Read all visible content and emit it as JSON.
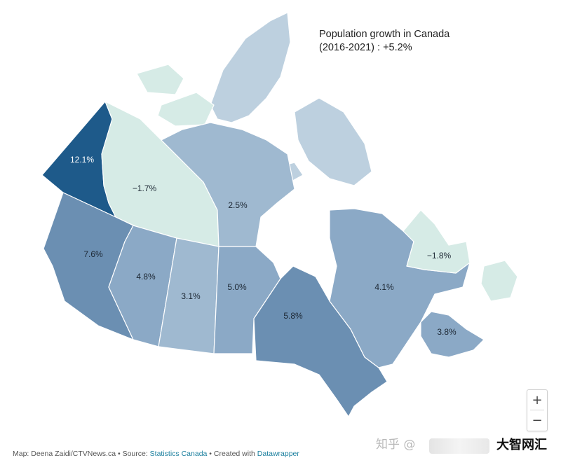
{
  "map": {
    "title": "Population growth in Canada (2016-2021) : +5.2%",
    "colors": {
      "very_dark": "#1e5a8a",
      "medium_dark": "#6b8fb2",
      "medium": "#8ba9c6",
      "light_blue": "#9fb9d0",
      "pale": "#d6ebe6",
      "island": "#bdd0df"
    },
    "provinces": [
      {
        "name": "Yukon",
        "value": "12.1%"
      },
      {
        "name": "Northwest Territories",
        "value": "−1.7%"
      },
      {
        "name": "Nunavut",
        "value": "2.5%"
      },
      {
        "name": "British Columbia",
        "value": "7.6%"
      },
      {
        "name": "Alberta",
        "value": "4.8%"
      },
      {
        "name": "Saskatchewan",
        "value": "3.1%"
      },
      {
        "name": "Manitoba",
        "value": "5.0%"
      },
      {
        "name": "Ontario",
        "value": "5.8%"
      },
      {
        "name": "Quebec",
        "value": "4.1%"
      },
      {
        "name": "Newfoundland and Labrador",
        "value": "−1.8%"
      },
      {
        "name": "Maritimes",
        "value": "3.8%"
      }
    ]
  },
  "zoom": {
    "in": "+",
    "out": "−"
  },
  "footer": {
    "prefix": "Map: Deena Zaidi/CTVNews.ca • Source: ",
    "source": "Statistics Canada",
    "middle": " • Created with ",
    "tool": "Datawrapper"
  },
  "watermark": {
    "zhihu": "知乎 @",
    "brand": "大智网汇"
  }
}
